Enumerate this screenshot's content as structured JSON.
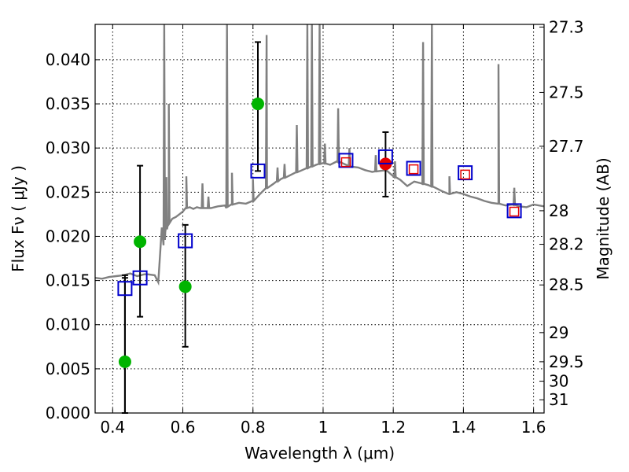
{
  "chart_data": {
    "type": "scatter",
    "xlabel": "Wavelength  λ (μm)",
    "ylabel": "Flux  Fν  ( μJy )",
    "y2label": "Magnitude (AB)",
    "xlim": [
      0.35,
      1.63
    ],
    "ylim": [
      0.0,
      0.044
    ],
    "x_ticks": [
      0.4,
      0.6,
      0.8,
      1.0,
      1.2,
      1.4,
      1.6
    ],
    "x_tick_labels": [
      "0.4",
      "0.6",
      "0.8",
      "1",
      "1.2",
      "1.4",
      "1.6"
    ],
    "y_ticks": [
      0.0,
      0.005,
      0.01,
      0.015,
      0.02,
      0.025,
      0.03,
      0.035,
      0.04
    ],
    "y_tick_labels": [
      "0.000",
      "0.005",
      "0.010",
      "0.015",
      "0.020",
      "0.025",
      "0.030",
      "0.035",
      "0.040"
    ],
    "magnitude_ticks": [
      {
        "label": "27.3",
        "flux": 0.0437
      },
      {
        "label": "27.5",
        "flux": 0.0363
      },
      {
        "label": "27.7",
        "flux": 0.0302
      },
      {
        "label": "28",
        "flux": 0.0229
      },
      {
        "label": "28.2",
        "flux": 0.0191
      },
      {
        "label": "28.5",
        "flux": 0.0145
      },
      {
        "label": "29",
        "flux": 0.0091
      },
      {
        "label": "29.5",
        "flux": 0.0058
      },
      {
        "label": "30",
        "flux": 0.0036
      },
      {
        "label": "31",
        "flux": 0.0015
      }
    ],
    "grid": true,
    "spectrum": {
      "name": "model spectrum",
      "color": "#808080",
      "x": [
        0.35,
        0.37,
        0.39,
        0.41,
        0.43,
        0.45,
        0.47,
        0.49,
        0.5,
        0.52,
        0.53,
        0.54,
        0.545,
        0.55,
        0.56,
        0.57,
        0.58,
        0.59,
        0.6,
        0.61,
        0.62,
        0.63,
        0.64,
        0.65,
        0.68,
        0.7,
        0.72,
        0.724,
        0.728,
        0.74,
        0.76,
        0.78,
        0.8,
        0.82,
        0.84,
        0.86,
        0.88,
        0.9,
        0.92,
        0.94,
        0.96,
        0.98,
        1.0,
        1.02,
        1.04,
        1.06,
        1.08,
        1.1,
        1.12,
        1.14,
        1.16,
        1.18,
        1.2,
        1.22,
        1.24,
        1.26,
        1.28,
        1.3,
        1.32,
        1.34,
        1.36,
        1.38,
        1.4,
        1.42,
        1.44,
        1.46,
        1.48,
        1.5,
        1.52,
        1.54,
        1.56,
        1.58,
        1.6,
        1.63
      ],
      "y": [
        0.0153,
        0.0152,
        0.0154,
        0.0155,
        0.0156,
        0.0158,
        0.0155,
        0.0157,
        0.0157,
        0.0156,
        0.0148,
        0.021,
        0.019,
        0.0205,
        0.0215,
        0.022,
        0.0222,
        0.0225,
        0.0228,
        0.0232,
        0.0233,
        0.0231,
        0.0233,
        0.0232,
        0.0232,
        0.0234,
        0.0235,
        0.0232,
        0.0235,
        0.0236,
        0.0238,
        0.0237,
        0.024,
        0.0248,
        0.0255,
        0.026,
        0.0265,
        0.0268,
        0.0272,
        0.0275,
        0.0278,
        0.0281,
        0.0283,
        0.0281,
        0.0285,
        0.0282,
        0.0279,
        0.0278,
        0.0275,
        0.0273,
        0.0274,
        0.0275,
        0.0268,
        0.0264,
        0.0257,
        0.0262,
        0.026,
        0.0258,
        0.0255,
        0.0251,
        0.0248,
        0.025,
        0.0248,
        0.0245,
        0.0243,
        0.024,
        0.0238,
        0.0237,
        0.0235,
        0.0236,
        0.0234,
        0.0233,
        0.0236,
        0.0234
      ],
      "emission_lines": [
        {
          "x": 0.547,
          "peak": 0.044
        },
        {
          "x": 0.553,
          "peak": 0.0267
        },
        {
          "x": 0.56,
          "peak": 0.035
        },
        {
          "x": 0.61,
          "peak": 0.0268
        },
        {
          "x": 0.656,
          "peak": 0.026
        },
        {
          "x": 0.673,
          "peak": 0.0245
        },
        {
          "x": 0.726,
          "peak": 0.044
        },
        {
          "x": 0.74,
          "peak": 0.0272
        },
        {
          "x": 0.8,
          "peak": 0.0265
        },
        {
          "x": 0.839,
          "peak": 0.0428
        },
        {
          "x": 0.87,
          "peak": 0.0278
        },
        {
          "x": 0.89,
          "peak": 0.0282
        },
        {
          "x": 0.925,
          "peak": 0.0326
        },
        {
          "x": 0.955,
          "peak": 0.044
        },
        {
          "x": 0.968,
          "peak": 0.044
        },
        {
          "x": 0.99,
          "peak": 0.044
        },
        {
          "x": 1.005,
          "peak": 0.0305
        },
        {
          "x": 1.043,
          "peak": 0.0345
        },
        {
          "x": 1.075,
          "peak": 0.03
        },
        {
          "x": 1.15,
          "peak": 0.0292
        },
        {
          "x": 1.205,
          "peak": 0.0285
        },
        {
          "x": 1.285,
          "peak": 0.042
        },
        {
          "x": 1.31,
          "peak": 0.044
        },
        {
          "x": 1.36,
          "peak": 0.0268
        },
        {
          "x": 1.5,
          "peak": 0.0395
        },
        {
          "x": 1.545,
          "peak": 0.0255
        }
      ]
    },
    "series": [
      {
        "name": "green points",
        "marker": "circle",
        "color": "#00b400",
        "points": [
          {
            "x": 0.435,
            "y": 0.0058,
            "err_low": 0.0058,
            "err_high": 0.0095
          },
          {
            "x": 0.478,
            "y": 0.0194,
            "err_low": null,
            "err_high": null
          },
          {
            "x": 0.607,
            "y": 0.0143,
            "err_low": null,
            "err_high": null
          },
          {
            "x": 0.814,
            "y": 0.035,
            "err_low": null,
            "err_high": null
          }
        ]
      },
      {
        "name": "red point",
        "marker": "circle",
        "color": "#e60000",
        "points": [
          {
            "x": 1.178,
            "y": 0.0282
          }
        ]
      },
      {
        "name": "blue open squares",
        "marker": "square",
        "color": "#0000cc",
        "points": [
          {
            "x": 0.435,
            "y": 0.0141,
            "err_low": 0.0141,
            "err_high": 0.0015
          },
          {
            "x": 0.478,
            "y": 0.0153,
            "err_low": 0.0044,
            "err_high": 0.0127
          },
          {
            "x": 0.607,
            "y": 0.0195,
            "err_low": 0.012,
            "err_high": 0.0018
          },
          {
            "x": 0.814,
            "y": 0.0274,
            "err_low": 0.0,
            "err_high": 0.0146
          },
          {
            "x": 1.065,
            "y": 0.0286
          },
          {
            "x": 1.178,
            "y": 0.029,
            "err_low": 0.0045,
            "err_high": 0.0028
          },
          {
            "x": 1.258,
            "y": 0.0277
          },
          {
            "x": 1.405,
            "y": 0.0272
          },
          {
            "x": 1.545,
            "y": 0.0229
          }
        ]
      },
      {
        "name": "red open squares",
        "marker": "square-small",
        "color": "#e60000",
        "points": [
          {
            "x": 1.065,
            "y": 0.0284
          },
          {
            "x": 1.258,
            "y": 0.0276
          },
          {
            "x": 1.405,
            "y": 0.027
          },
          {
            "x": 1.545,
            "y": 0.0228
          }
        ]
      }
    ]
  }
}
